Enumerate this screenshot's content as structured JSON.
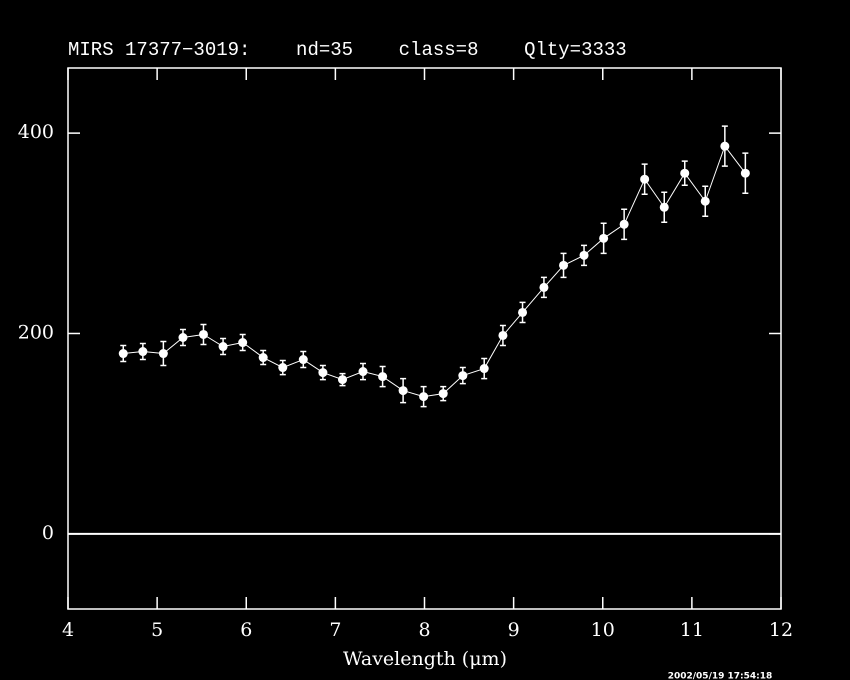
{
  "chart_data": {
    "type": "errorline",
    "title": "MIRS 17377−3019:    nd=35    class=8    Qlty=3333",
    "xlabel": "Wavelength (μm)",
    "timestamp": "2002/05/19 17:54:18",
    "x": [
      4.62,
      4.84,
      5.07,
      5.29,
      5.52,
      5.74,
      5.96,
      6.19,
      6.41,
      6.64,
      6.86,
      7.08,
      7.31,
      7.53,
      7.76,
      7.99,
      8.21,
      8.43,
      8.67,
      8.88,
      9.1,
      9.34,
      9.56,
      9.79,
      10.01,
      10.24,
      10.47,
      10.69,
      10.92,
      11.15,
      11.37,
      11.6
    ],
    "values": [
      180,
      182,
      180,
      196,
      199,
      187,
      191,
      176,
      166,
      174,
      161,
      154,
      162,
      157,
      143,
      137,
      140,
      158,
      165,
      198,
      221,
      246,
      268,
      278,
      295,
      309,
      354,
      326,
      360,
      332,
      387,
      360
    ],
    "errors": [
      8,
      8,
      12,
      8,
      10,
      8,
      8,
      7,
      7,
      8,
      7,
      6,
      8,
      10,
      12,
      10,
      7,
      8,
      10,
      10,
      10,
      10,
      12,
      10,
      15,
      15,
      15,
      15,
      12,
      15,
      20,
      20
    ],
    "color": "#ffffff",
    "xlim": [
      4,
      12
    ],
    "xticks": [
      4,
      5,
      6,
      7,
      8,
      9,
      10,
      11,
      12
    ],
    "ylim": [
      -75,
      465
    ],
    "yticks": [
      0,
      200,
      400
    ],
    "hline": 0
  }
}
